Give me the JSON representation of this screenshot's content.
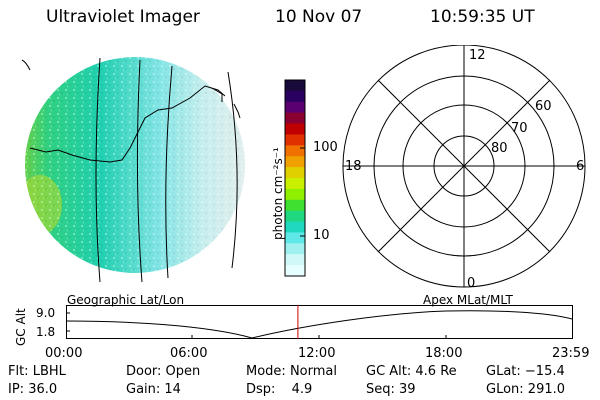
{
  "header": {
    "instrument": "Ultraviolet Imager",
    "date": "10 Nov 07",
    "time": "10:59:35 UT"
  },
  "colorbar": {
    "unit_label": "photon cm⁻²s⁻¹",
    "ticks": [
      "100",
      "10"
    ],
    "colors": [
      "#1a0a3a",
      "#2a0060",
      "#5a0070",
      "#8a0030",
      "#c00000",
      "#e03000",
      "#f07000",
      "#f0a000",
      "#e0d000",
      "#c8f000",
      "#90f000",
      "#40e030",
      "#20d880",
      "#20d8c0",
      "#60e8e8",
      "#a0f0f0",
      "#d0f8f8",
      "#e8ffff"
    ]
  },
  "polar_plot": {
    "mlt_labels": {
      "top": "12",
      "left": "18",
      "right": "6",
      "bottom": "0"
    },
    "lat_labels": [
      "60",
      "70",
      "80"
    ]
  },
  "timeline": {
    "y_axis_label": "GC Alt",
    "y_ticks": [
      "9.0",
      "1.8"
    ],
    "left_label": "Geographic Lat/Lon",
    "right_label": "Apex MLat/MLT",
    "x_ticks": [
      "00:00",
      "06:00",
      "12:00",
      "18:00",
      "23:59"
    ],
    "current_time_hours": 10.99
  },
  "info_rows": [
    [
      {
        "label": "Flt: ",
        "value": "LBHL"
      },
      {
        "label": "Door: ",
        "value": "Open"
      },
      {
        "label": "Mode: ",
        "value": "Normal"
      },
      {
        "label": "GC Alt: ",
        "value": "4.6 Re"
      },
      {
        "label": "GLat: ",
        "value": "−15.4"
      }
    ],
    [
      {
        "label": "IP: ",
        "value": "36.0"
      },
      {
        "label": "Gain: ",
        "value": "14"
      },
      {
        "label": "Dsp: ",
        "value": "4.9"
      },
      {
        "label": "Seq: ",
        "value": "39"
      },
      {
        "label": "GLon: ",
        "value": "291.0"
      }
    ]
  ]
}
